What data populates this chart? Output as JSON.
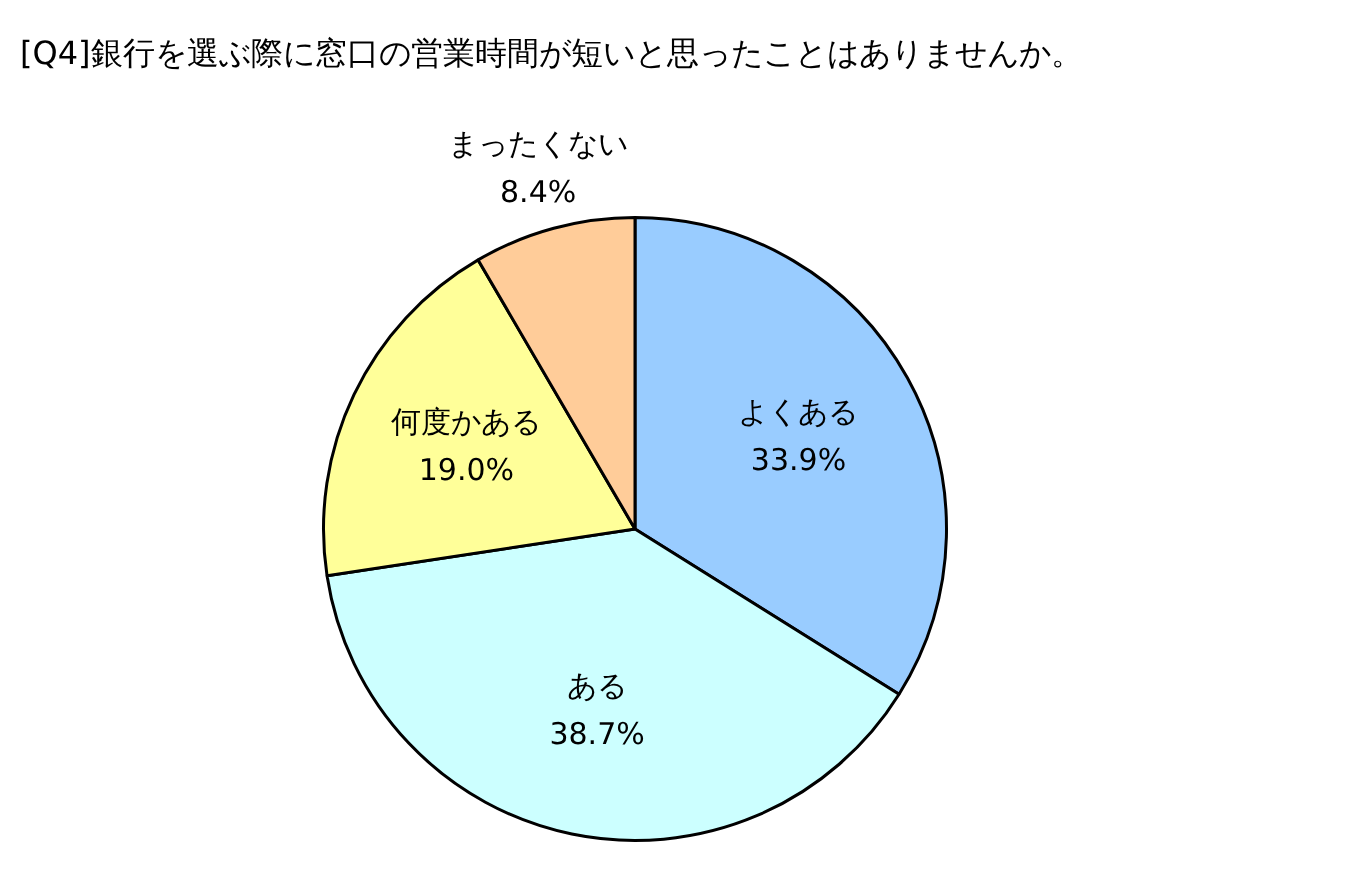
{
  "chart_data": {
    "type": "pie",
    "title": "[Q4]銀行を選ぶ際に窓口の営業時間が短いと思ったことはありませんか。",
    "categories": [
      "よくある",
      "ある",
      "何度かある",
      "まったくない"
    ],
    "values": [
      33.9,
      38.7,
      19.0,
      8.4
    ],
    "value_labels": [
      "33.9%",
      "38.7%",
      "19.0%",
      "8.4%"
    ],
    "colors": [
      "#99ccff",
      "#ccffff",
      "#ffff99",
      "#ffcc99"
    ],
    "legend": false
  }
}
